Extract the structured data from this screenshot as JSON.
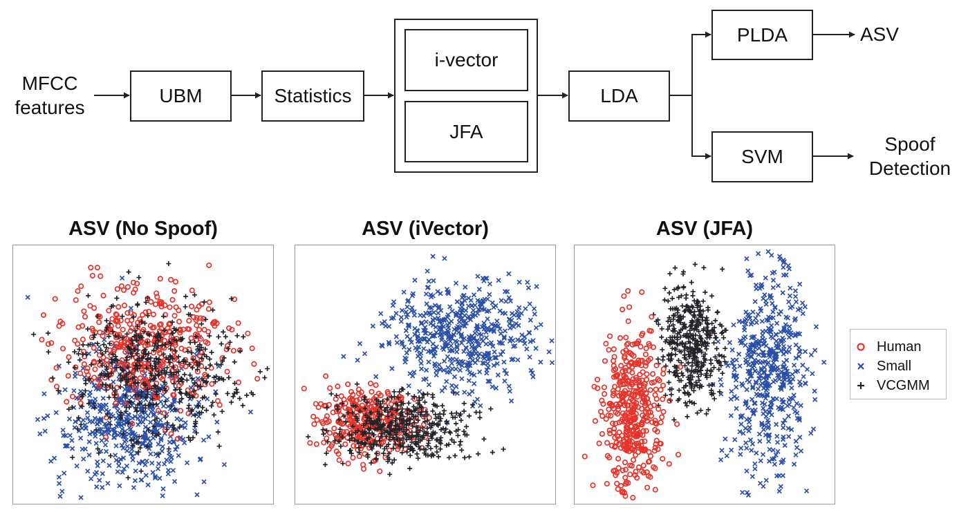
{
  "pipeline": {
    "input_label": [
      "MFCC",
      "features"
    ],
    "ubm": "UBM",
    "statistics": "Statistics",
    "ivector": "i-vector",
    "jfa": "JFA",
    "lda": "LDA",
    "plda": "PLDA",
    "svm": "SVM",
    "asv_output": "ASV",
    "spoof_output": [
      "Spoof",
      "Detection"
    ]
  },
  "legend": {
    "items": [
      {
        "name": "Human",
        "marker": "circle",
        "color": "#e8332a"
      },
      {
        "name": "Small",
        "marker": "x",
        "color": "#2a4fa8"
      },
      {
        "name": "VCGMM",
        "marker": "plus",
        "color": "#232329"
      }
    ]
  },
  "scatter_panels": [
    {
      "title": "ASV (No Spoof)"
    },
    {
      "title": "ASV (iVector)"
    },
    {
      "title": "ASV (JFA)"
    }
  ]
}
